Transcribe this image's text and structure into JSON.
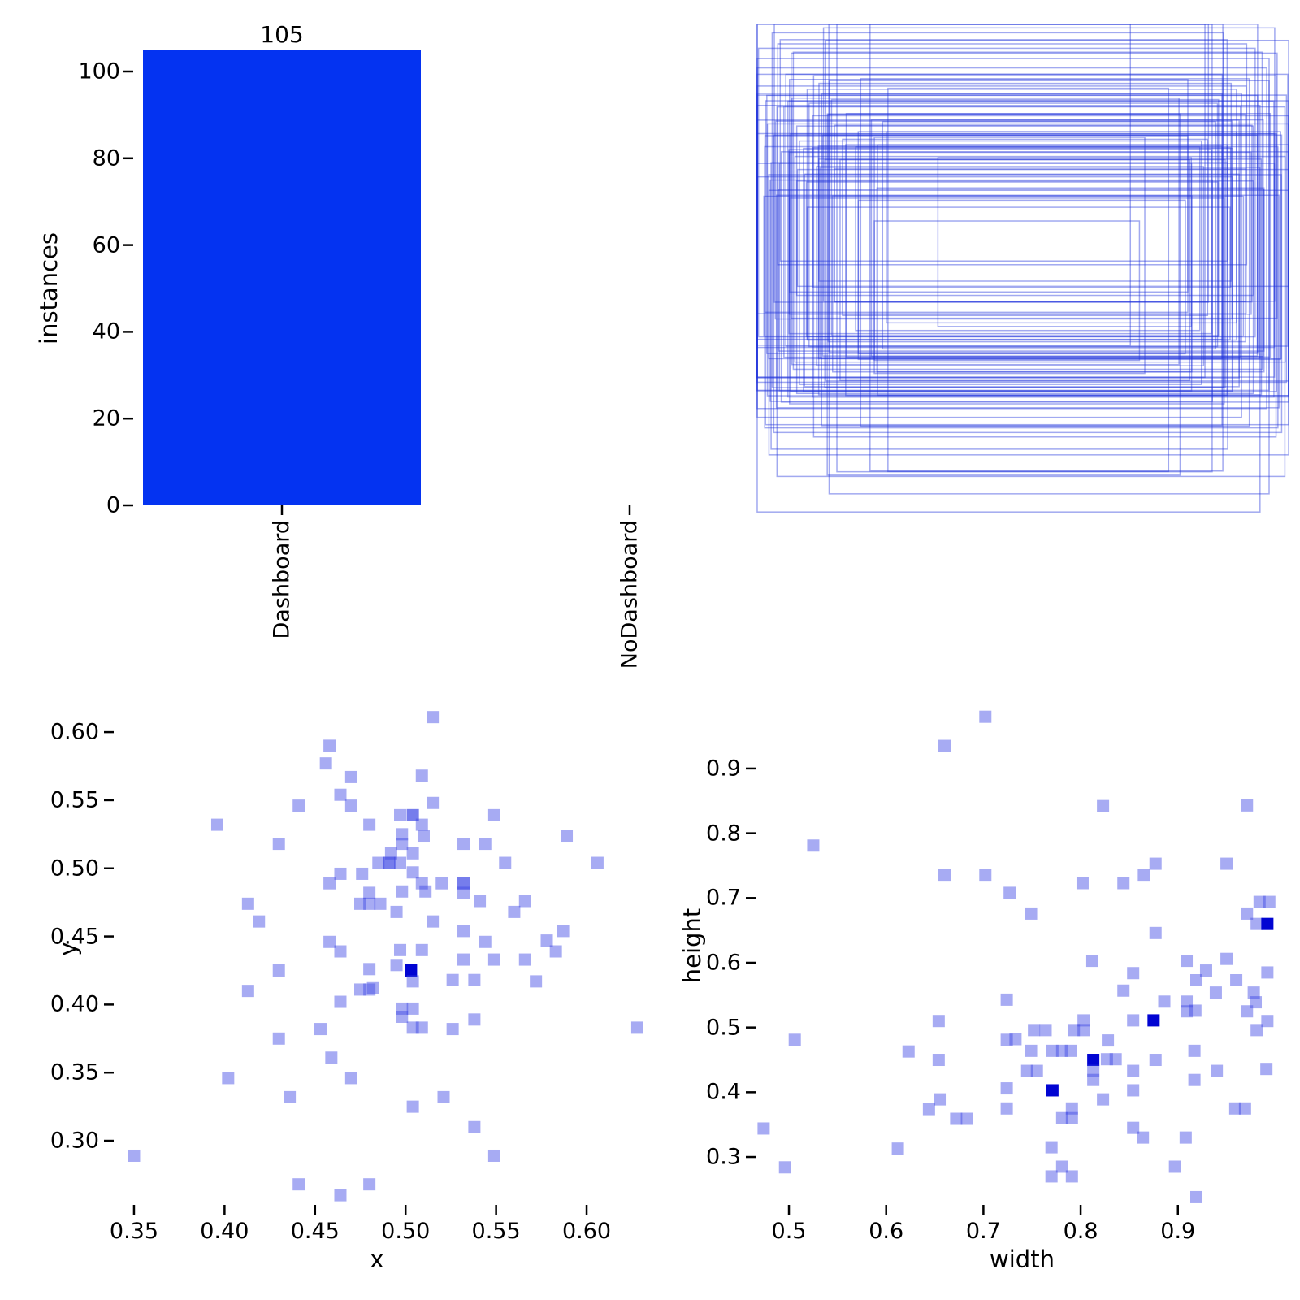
{
  "figure": {
    "background": "#ffffff"
  },
  "colors": {
    "bar": "#0433f1",
    "marker_alpha_fill": "rgba(60,68,228,0.45)",
    "marker_dark": "#0104d2",
    "rect_stroke": "rgba(30,50,220,0.42)",
    "tick": "#000000",
    "text": "#000000"
  },
  "chart_data": [
    {
      "id": "class-instances",
      "type": "bar",
      "categories": [
        "Dashboard",
        "NoDashboard"
      ],
      "values": [
        105,
        0
      ],
      "value_labels": [
        "105"
      ],
      "ylabel": "instances",
      "xlabel": "",
      "yticks": [
        "0",
        "20",
        "40",
        "60",
        "80",
        "100"
      ],
      "ylim": [
        0,
        106.2
      ],
      "grid": false,
      "legend": "none"
    },
    {
      "id": "bbox-overlay",
      "type": "rects",
      "description": "overlapping normalized bounding-box outlines, no axes or ticks",
      "source": "rect i: center from chart_data[2].points[i], size from chart_data[3].points[(i*31+7) mod N]",
      "unit_space": [
        0,
        1
      ]
    },
    {
      "id": "center-scatter",
      "type": "scatter",
      "xlabel": "x",
      "ylabel": "y",
      "xticks": [
        "0.35",
        "0.40",
        "0.45",
        "0.50",
        "0.55",
        "0.60"
      ],
      "yticks": [
        "0.60",
        "0.55",
        "0.50",
        "0.45",
        "0.40",
        "0.35",
        "0.30"
      ],
      "xlim": [
        0.3388,
        0.6296
      ],
      "ylim": [
        0.2529,
        0.6275
      ],
      "marker": "square",
      "grid": false,
      "points": [
        [
          0.458,
          0.59
        ],
        [
          0.456,
          0.577
        ],
        [
          0.47,
          0.567
        ],
        [
          0.464,
          0.554
        ],
        [
          0.47,
          0.546
        ],
        [
          0.441,
          0.546
        ],
        [
          0.396,
          0.532
        ],
        [
          0.48,
          0.532
        ],
        [
          0.43,
          0.518
        ],
        [
          0.464,
          0.496
        ],
        [
          0.476,
          0.496
        ],
        [
          0.458,
          0.489
        ],
        [
          0.48,
          0.482
        ],
        [
          0.475,
          0.474
        ],
        [
          0.48,
          0.474
        ],
        [
          0.486,
          0.474
        ],
        [
          0.413,
          0.474
        ],
        [
          0.419,
          0.461
        ],
        [
          0.458,
          0.446
        ],
        [
          0.464,
          0.439
        ],
        [
          0.515,
          0.611
        ],
        [
          0.509,
          0.568
        ],
        [
          0.515,
          0.548
        ],
        [
          0.497,
          0.539
        ],
        [
          0.504,
          0.539,
          2
        ],
        [
          0.549,
          0.539
        ],
        [
          0.509,
          0.532
        ],
        [
          0.498,
          0.525
        ],
        [
          0.51,
          0.524
        ],
        [
          0.498,
          0.518
        ],
        [
          0.532,
          0.518
        ],
        [
          0.544,
          0.518
        ],
        [
          0.589,
          0.524
        ],
        [
          0.504,
          0.511
        ],
        [
          0.492,
          0.511
        ],
        [
          0.485,
          0.504
        ],
        [
          0.491,
          0.504,
          2
        ],
        [
          0.497,
          0.504
        ],
        [
          0.555,
          0.504
        ],
        [
          0.606,
          0.504
        ],
        [
          0.504,
          0.497
        ],
        [
          0.509,
          0.489
        ],
        [
          0.52,
          0.489
        ],
        [
          0.532,
          0.489,
          2
        ],
        [
          0.498,
          0.483
        ],
        [
          0.511,
          0.483
        ],
        [
          0.532,
          0.482
        ],
        [
          0.541,
          0.476
        ],
        [
          0.566,
          0.476
        ],
        [
          0.495,
          0.468
        ],
        [
          0.56,
          0.468
        ],
        [
          0.515,
          0.461
        ],
        [
          0.532,
          0.454
        ],
        [
          0.544,
          0.446
        ],
        [
          0.578,
          0.447
        ],
        [
          0.587,
          0.454
        ],
        [
          0.497,
          0.44
        ],
        [
          0.509,
          0.44
        ],
        [
          0.583,
          0.439
        ],
        [
          0.532,
          0.433
        ],
        [
          0.549,
          0.433
        ],
        [
          0.566,
          0.433
        ],
        [
          0.495,
          0.429
        ],
        [
          0.43,
          0.425
        ],
        [
          0.48,
          0.426
        ],
        [
          0.413,
          0.41
        ],
        [
          0.475,
          0.411
        ],
        [
          0.48,
          0.411
        ],
        [
          0.464,
          0.402
        ],
        [
          0.453,
          0.382
        ],
        [
          0.43,
          0.375
        ],
        [
          0.459,
          0.361
        ],
        [
          0.402,
          0.346
        ],
        [
          0.47,
          0.346
        ],
        [
          0.436,
          0.332
        ],
        [
          0.35,
          0.289
        ],
        [
          0.441,
          0.268
        ],
        [
          0.464,
          0.26
        ],
        [
          0.503,
          0.425,
          3
        ],
        [
          0.504,
          0.417
        ],
        [
          0.526,
          0.418
        ],
        [
          0.538,
          0.418
        ],
        [
          0.572,
          0.417
        ],
        [
          0.482,
          0.412
        ],
        [
          0.498,
          0.397
        ],
        [
          0.504,
          0.397
        ],
        [
          0.498,
          0.391
        ],
        [
          0.504,
          0.383
        ],
        [
          0.509,
          0.383
        ],
        [
          0.526,
          0.382
        ],
        [
          0.538,
          0.389
        ],
        [
          0.628,
          0.383
        ],
        [
          0.521,
          0.332
        ],
        [
          0.504,
          0.325
        ],
        [
          0.538,
          0.31
        ],
        [
          0.549,
          0.289
        ],
        [
          0.48,
          0.268
        ]
      ]
    },
    {
      "id": "size-scatter",
      "type": "scatter",
      "xlabel": "width",
      "ylabel": "height",
      "xticks": [
        "0.5",
        "0.6",
        "0.7",
        "0.8",
        "0.9"
      ],
      "yticks": [
        "0.9",
        "0.8",
        "0.7",
        "0.6",
        "0.5",
        "0.4",
        "0.3"
      ],
      "xlim": [
        0.4699,
        1.0155
      ],
      "ylim": [
        0.226,
        1.0204
      ],
      "marker": "square",
      "grid": false,
      "points": [
        [
          0.702,
          0.98
        ],
        [
          0.66,
          0.935
        ],
        [
          0.525,
          0.781
        ],
        [
          0.66,
          0.736
        ],
        [
          0.702,
          0.736
        ],
        [
          0.727,
          0.708
        ],
        [
          0.823,
          0.842
        ],
        [
          0.971,
          0.843
        ],
        [
          0.877,
          0.753
        ],
        [
          0.865,
          0.736
        ],
        [
          0.95,
          0.753
        ],
        [
          0.802,
          0.723
        ],
        [
          0.844,
          0.723
        ],
        [
          0.749,
          0.676
        ],
        [
          0.984,
          0.694
        ],
        [
          0.994,
          0.694
        ],
        [
          0.971,
          0.676
        ],
        [
          0.981,
          0.66
        ],
        [
          0.992,
          0.66,
          3
        ],
        [
          0.877,
          0.646
        ],
        [
          0.724,
          0.543
        ],
        [
          0.654,
          0.51
        ],
        [
          0.506,
          0.481
        ],
        [
          0.724,
          0.481
        ],
        [
          0.623,
          0.463
        ],
        [
          0.654,
          0.45
        ],
        [
          0.724,
          0.406
        ],
        [
          0.655,
          0.389
        ],
        [
          0.644,
          0.374
        ],
        [
          0.724,
          0.375
        ],
        [
          0.672,
          0.359
        ],
        [
          0.683,
          0.359
        ],
        [
          0.474,
          0.344
        ],
        [
          0.612,
          0.313
        ],
        [
          0.496,
          0.284
        ],
        [
          0.812,
          0.603
        ],
        [
          0.909,
          0.603
        ],
        [
          0.95,
          0.606
        ],
        [
          0.854,
          0.584
        ],
        [
          0.929,
          0.588
        ],
        [
          0.919,
          0.573
        ],
        [
          0.96,
          0.573
        ],
        [
          0.844,
          0.557
        ],
        [
          0.886,
          0.54
        ],
        [
          0.978,
          0.554
        ],
        [
          0.98,
          0.539
        ],
        [
          0.909,
          0.54
        ],
        [
          0.918,
          0.526
        ],
        [
          0.909,
          0.525
        ],
        [
          0.971,
          0.525
        ],
        [
          0.939,
          0.554
        ],
        [
          0.854,
          0.511
        ],
        [
          0.875,
          0.511,
          3
        ],
        [
          0.981,
          0.496
        ],
        [
          0.803,
          0.511
        ],
        [
          0.793,
          0.496
        ],
        [
          0.803,
          0.496
        ],
        [
          0.752,
          0.496
        ],
        [
          0.764,
          0.496
        ],
        [
          0.733,
          0.482
        ],
        [
          0.749,
          0.464
        ],
        [
          0.771,
          0.464
        ],
        [
          0.781,
          0.464
        ],
        [
          0.79,
          0.464
        ],
        [
          0.828,
          0.48
        ],
        [
          0.827,
          0.451
        ],
        [
          0.836,
          0.451
        ],
        [
          0.813,
          0.45,
          3
        ],
        [
          0.813,
          0.433
        ],
        [
          0.813,
          0.419
        ],
        [
          0.745,
          0.433
        ],
        [
          0.755,
          0.433
        ],
        [
          0.854,
          0.433
        ],
        [
          0.877,
          0.45
        ],
        [
          0.917,
          0.464
        ],
        [
          0.917,
          0.419
        ],
        [
          0.94,
          0.433
        ],
        [
          0.771,
          0.403,
          3
        ],
        [
          0.854,
          0.403
        ],
        [
          0.823,
          0.389
        ],
        [
          0.791,
          0.375
        ],
        [
          0.781,
          0.36
        ],
        [
          0.791,
          0.36
        ],
        [
          0.959,
          0.375
        ],
        [
          0.969,
          0.375
        ],
        [
          0.854,
          0.345
        ],
        [
          0.864,
          0.33
        ],
        [
          0.908,
          0.33
        ],
        [
          0.77,
          0.315
        ],
        [
          0.781,
          0.285
        ],
        [
          0.77,
          0.27
        ],
        [
          0.791,
          0.27
        ],
        [
          0.897,
          0.285
        ],
        [
          0.919,
          0.238
        ],
        [
          0.992,
          0.585
        ],
        [
          0.992,
          0.51
        ],
        [
          0.991,
          0.436
        ]
      ]
    }
  ]
}
